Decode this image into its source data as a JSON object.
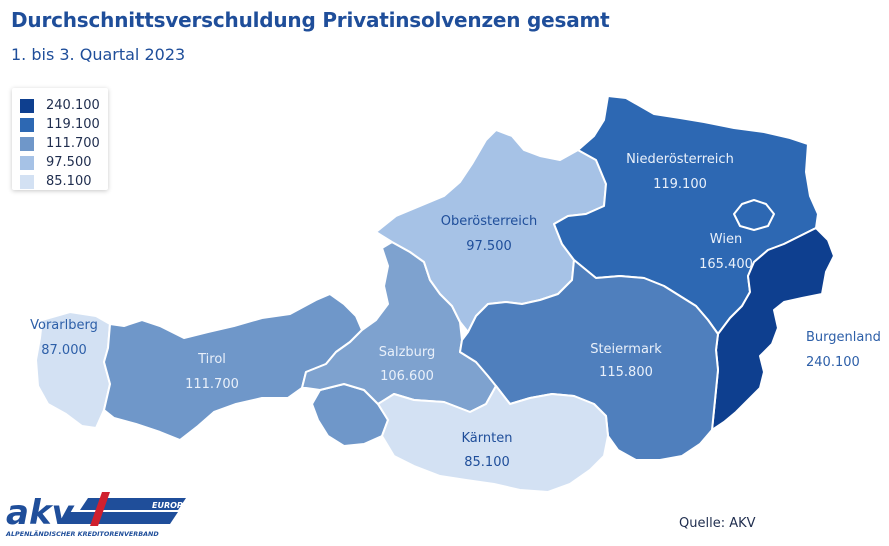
{
  "header": {
    "title": "Durchschnittsverschuldung Privatinsolvenzen gesamt",
    "subtitle": "1. bis 3. Quartal 2023"
  },
  "legend": {
    "items": [
      {
        "label": "240.100",
        "color": "#0e3f8f"
      },
      {
        "label": "119.100",
        "color": "#2d68b3"
      },
      {
        "label": "111.700",
        "color": "#6f97c9"
      },
      {
        "label": "97.500",
        "color": "#a6c2e6"
      },
      {
        "label": "85.100",
        "color": "#d3e1f3"
      }
    ]
  },
  "regions": {
    "vorarlberg": {
      "name": "Vorarlberg",
      "value": "87.000",
      "color": "#d3e1f3"
    },
    "tirol": {
      "name": "Tirol",
      "value": "111.700",
      "color": "#6f97c9"
    },
    "salzburg": {
      "name": "Salzburg",
      "value": "106.600",
      "color": "#7ea2cf"
    },
    "oberoesterreich": {
      "name": "Oberösterreich",
      "value": "97.500",
      "color": "#a6c2e6"
    },
    "niederoesterreich": {
      "name": "Niederösterreich",
      "value": "119.100",
      "color": "#2d68b3"
    },
    "wien": {
      "name": "Wien",
      "value": "165.400",
      "color": "#2d68b3"
    },
    "burgenland": {
      "name": "Burgenland",
      "value": "240.100",
      "color": "#0e3f8f"
    },
    "steiermark": {
      "name": "Steiermark",
      "value": "115.800",
      "color": "#4f7fbd"
    },
    "kaernten": {
      "name": "Kärnten",
      "value": "85.100",
      "color": "#d3e1f3"
    }
  },
  "source": "Quelle: AKV",
  "logo": {
    "brand": "akv",
    "tag": "EUROPA",
    "subline": "ALPENLÄNDISCHER KREDITORENVERBAND"
  }
}
